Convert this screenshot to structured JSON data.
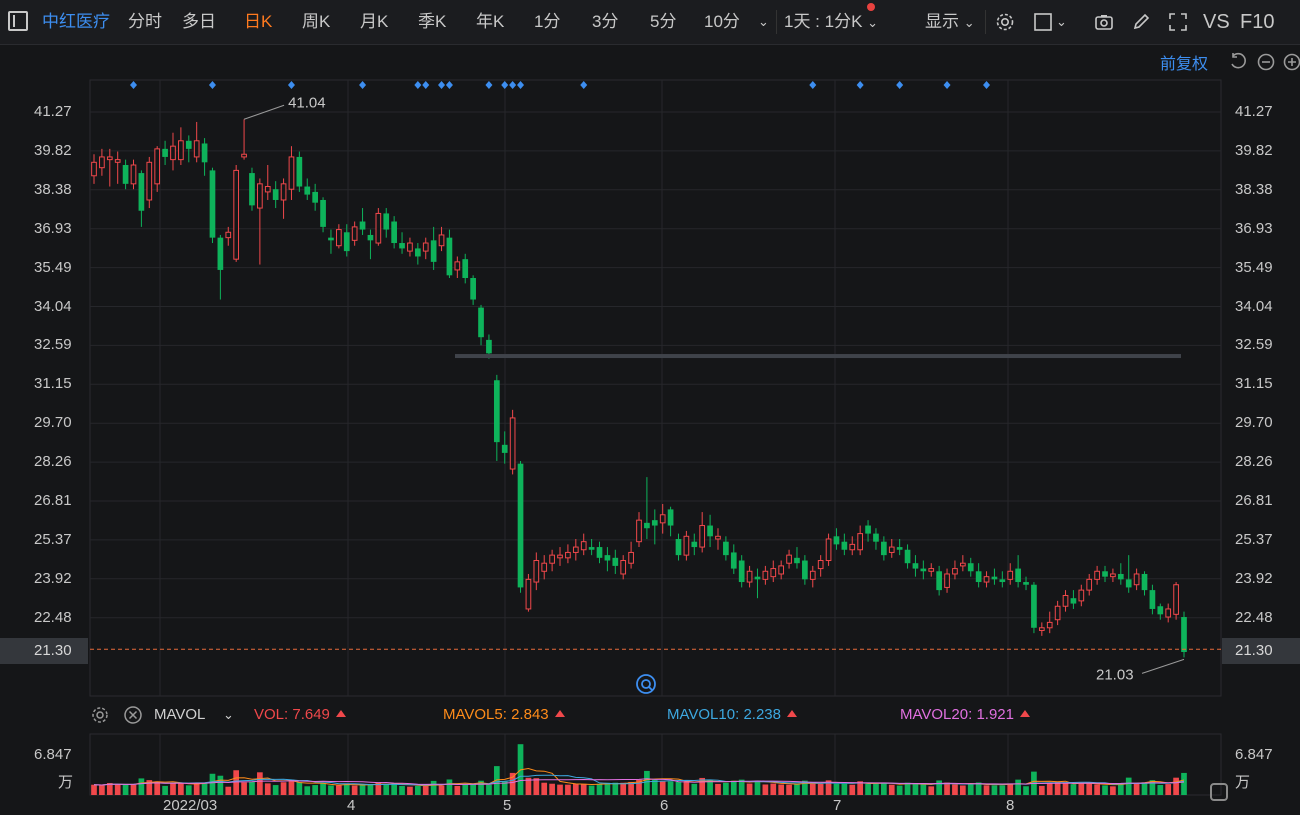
{
  "toolbar": {
    "stock_name": "中红医疗",
    "tabs": [
      "分时",
      "多日",
      "日K",
      "周K",
      "月K",
      "季K",
      "年K",
      "1分",
      "3分",
      "5分",
      "10分"
    ],
    "active_tab": "日K",
    "period_select": "1天 : 1分K",
    "display_label": "显示",
    "vs_label": "VS",
    "f10_label": "F10"
  },
  "adjust_label": "前复权",
  "chart_data": {
    "type": "candlestick",
    "y_ticks": [
      "41.27",
      "39.82",
      "38.38",
      "36.93",
      "35.49",
      "34.04",
      "32.59",
      "31.15",
      "29.70",
      "28.26",
      "26.81",
      "25.37",
      "23.92",
      "22.48"
    ],
    "ylim": [
      20.2,
      42.0
    ],
    "current_price": "21.30",
    "high_label": "41.04",
    "low_label": "21.03",
    "x_labels": [
      "2022/03",
      "4",
      "5",
      "6",
      "7",
      "8"
    ],
    "volume_unit_label": "6.847",
    "volume_unit": "万",
    "reference_line": 32.2,
    "candles": [
      {
        "o": 38.9,
        "c": 39.4,
        "h": 39.7,
        "l": 38.6
      },
      {
        "o": 39.2,
        "c": 39.6,
        "h": 39.9,
        "l": 38.9
      },
      {
        "o": 39.5,
        "c": 39.6,
        "h": 39.9,
        "l": 38.5
      },
      {
        "o": 39.4,
        "c": 39.5,
        "h": 39.8,
        "l": 38.6
      },
      {
        "o": 39.3,
        "c": 38.6,
        "h": 39.5,
        "l": 38.4
      },
      {
        "o": 38.6,
        "c": 39.3,
        "h": 39.5,
        "l": 38.4
      },
      {
        "o": 39.0,
        "c": 37.6,
        "h": 39.1,
        "l": 37.0
      },
      {
        "o": 38.0,
        "c": 39.4,
        "h": 39.6,
        "l": 37.7
      },
      {
        "o": 38.6,
        "c": 39.9,
        "h": 40.0,
        "l": 38.3
      },
      {
        "o": 39.9,
        "c": 39.6,
        "h": 40.2,
        "l": 39.3
      },
      {
        "o": 39.5,
        "c": 40.0,
        "h": 40.5,
        "l": 39.1
      },
      {
        "o": 39.5,
        "c": 40.2,
        "h": 40.7,
        "l": 39.3
      },
      {
        "o": 40.2,
        "c": 39.9,
        "h": 40.4,
        "l": 39.4
      },
      {
        "o": 39.6,
        "c": 40.2,
        "h": 40.9,
        "l": 39.4
      },
      {
        "o": 40.1,
        "c": 39.4,
        "h": 40.3,
        "l": 38.9
      },
      {
        "o": 39.1,
        "c": 36.6,
        "h": 39.2,
        "l": 36.4
      },
      {
        "o": 36.6,
        "c": 35.4,
        "h": 36.7,
        "l": 34.3
      },
      {
        "o": 36.6,
        "c": 36.8,
        "h": 37.0,
        "l": 36.3
      },
      {
        "o": 35.8,
        "c": 39.1,
        "h": 39.3,
        "l": 35.7
      },
      {
        "o": 39.6,
        "c": 39.7,
        "h": 41.0,
        "l": 39.5
      },
      {
        "o": 39.0,
        "c": 37.8,
        "h": 39.2,
        "l": 37.6
      },
      {
        "o": 37.7,
        "c": 38.6,
        "h": 38.8,
        "l": 35.6
      },
      {
        "o": 38.3,
        "c": 38.5,
        "h": 39.3,
        "l": 38.0
      },
      {
        "o": 38.4,
        "c": 38.0,
        "h": 38.7,
        "l": 37.7
      },
      {
        "o": 38.0,
        "c": 38.6,
        "h": 38.8,
        "l": 37.3
      },
      {
        "o": 38.4,
        "c": 39.6,
        "h": 40.0,
        "l": 38.0
      },
      {
        "o": 39.6,
        "c": 38.5,
        "h": 39.8,
        "l": 38.3
      },
      {
        "o": 38.5,
        "c": 38.2,
        "h": 38.8,
        "l": 38.0
      },
      {
        "o": 38.3,
        "c": 37.9,
        "h": 38.6,
        "l": 37.6
      },
      {
        "o": 38.0,
        "c": 37.0,
        "h": 38.1,
        "l": 36.8
      },
      {
        "o": 36.6,
        "c": 36.5,
        "h": 36.9,
        "l": 36.0
      },
      {
        "o": 36.3,
        "c": 36.9,
        "h": 37.1,
        "l": 36.2
      },
      {
        "o": 36.8,
        "c": 36.1,
        "h": 37.1,
        "l": 35.9
      },
      {
        "o": 36.5,
        "c": 37.0,
        "h": 37.2,
        "l": 36.3
      },
      {
        "o": 37.2,
        "c": 36.9,
        "h": 37.7,
        "l": 36.7
      },
      {
        "o": 36.7,
        "c": 36.5,
        "h": 36.9,
        "l": 35.8
      },
      {
        "o": 36.4,
        "c": 37.5,
        "h": 37.7,
        "l": 36.3
      },
      {
        "o": 37.5,
        "c": 36.9,
        "h": 37.7,
        "l": 36.6
      },
      {
        "o": 37.2,
        "c": 36.4,
        "h": 37.4,
        "l": 36.2
      },
      {
        "o": 36.4,
        "c": 36.2,
        "h": 36.8,
        "l": 36.0
      },
      {
        "o": 36.1,
        "c": 36.4,
        "h": 36.6,
        "l": 35.9
      },
      {
        "o": 36.2,
        "c": 35.9,
        "h": 36.4,
        "l": 35.6
      },
      {
        "o": 36.1,
        "c": 36.4,
        "h": 36.6,
        "l": 35.8
      },
      {
        "o": 36.5,
        "c": 35.7,
        "h": 37.0,
        "l": 35.4
      },
      {
        "o": 36.3,
        "c": 36.7,
        "h": 37.0,
        "l": 36.1
      },
      {
        "o": 36.6,
        "c": 35.2,
        "h": 36.9,
        "l": 35.1
      },
      {
        "o": 35.4,
        "c": 35.7,
        "h": 35.9,
        "l": 35.1
      },
      {
        "o": 35.8,
        "c": 35.1,
        "h": 36.0,
        "l": 34.9
      },
      {
        "o": 35.1,
        "c": 34.3,
        "h": 35.2,
        "l": 34.1
      },
      {
        "o": 34.0,
        "c": 32.9,
        "h": 34.1,
        "l": 32.6
      },
      {
        "o": 32.8,
        "c": 32.3,
        "h": 33.0,
        "l": 32.1
      },
      {
        "o": 31.3,
        "c": 29.0,
        "h": 31.5,
        "l": 28.3
      },
      {
        "o": 28.9,
        "c": 28.6,
        "h": 29.4,
        "l": 28.2
      },
      {
        "o": 28.0,
        "c": 29.9,
        "h": 30.2,
        "l": 27.8
      },
      {
        "o": 28.2,
        "c": 23.6,
        "h": 28.3,
        "l": 23.4
      },
      {
        "o": 22.8,
        "c": 23.9,
        "h": 24.1,
        "l": 22.7
      },
      {
        "o": 23.8,
        "c": 24.6,
        "h": 24.9,
        "l": 23.5
      },
      {
        "o": 24.2,
        "c": 24.5,
        "h": 24.8,
        "l": 23.9
      },
      {
        "o": 24.5,
        "c": 24.8,
        "h": 25.0,
        "l": 24.2
      },
      {
        "o": 24.7,
        "c": 24.8,
        "h": 25.1,
        "l": 24.4
      },
      {
        "o": 24.7,
        "c": 24.9,
        "h": 25.2,
        "l": 24.5
      },
      {
        "o": 24.9,
        "c": 25.1,
        "h": 25.4,
        "l": 24.6
      },
      {
        "o": 25.0,
        "c": 25.3,
        "h": 25.6,
        "l": 24.8
      },
      {
        "o": 25.1,
        "c": 25.0,
        "h": 25.4,
        "l": 24.8
      },
      {
        "o": 25.1,
        "c": 24.7,
        "h": 25.3,
        "l": 24.5
      },
      {
        "o": 24.8,
        "c": 24.6,
        "h": 25.1,
        "l": 24.2
      },
      {
        "o": 24.7,
        "c": 24.4,
        "h": 25.0,
        "l": 24.1
      },
      {
        "o": 24.1,
        "c": 24.6,
        "h": 24.8,
        "l": 23.9
      },
      {
        "o": 24.5,
        "c": 24.9,
        "h": 25.3,
        "l": 24.3
      },
      {
        "o": 25.3,
        "c": 26.1,
        "h": 26.4,
        "l": 25.1
      },
      {
        "o": 26.0,
        "c": 25.8,
        "h": 27.7,
        "l": 25.4
      },
      {
        "o": 26.1,
        "c": 25.9,
        "h": 26.5,
        "l": 25.2
      },
      {
        "o": 26.0,
        "c": 26.3,
        "h": 26.7,
        "l": 25.6
      },
      {
        "o": 26.5,
        "c": 25.9,
        "h": 26.6,
        "l": 25.5
      },
      {
        "o": 25.4,
        "c": 24.8,
        "h": 25.6,
        "l": 24.6
      },
      {
        "o": 24.8,
        "c": 25.5,
        "h": 25.7,
        "l": 24.6
      },
      {
        "o": 25.3,
        "c": 25.1,
        "h": 25.6,
        "l": 24.8
      },
      {
        "o": 25.1,
        "c": 25.9,
        "h": 26.4,
        "l": 24.9
      },
      {
        "o": 25.9,
        "c": 25.5,
        "h": 26.3,
        "l": 25.1
      },
      {
        "o": 25.4,
        "c": 25.5,
        "h": 25.8,
        "l": 25.0
      },
      {
        "o": 25.3,
        "c": 24.8,
        "h": 25.5,
        "l": 24.6
      },
      {
        "o": 24.9,
        "c": 24.3,
        "h": 25.2,
        "l": 24.1
      },
      {
        "o": 24.6,
        "c": 23.8,
        "h": 24.8,
        "l": 23.6
      },
      {
        "o": 23.8,
        "c": 24.2,
        "h": 24.4,
        "l": 23.6
      },
      {
        "o": 24.0,
        "c": 23.9,
        "h": 24.3,
        "l": 23.2
      },
      {
        "o": 23.9,
        "c": 24.2,
        "h": 24.4,
        "l": 23.7
      },
      {
        "o": 24.0,
        "c": 24.3,
        "h": 24.6,
        "l": 23.8
      },
      {
        "o": 24.1,
        "c": 24.4,
        "h": 24.6,
        "l": 23.9
      },
      {
        "o": 24.5,
        "c": 24.8,
        "h": 25.0,
        "l": 24.3
      },
      {
        "o": 24.7,
        "c": 24.5,
        "h": 25.1,
        "l": 24.3
      },
      {
        "o": 24.6,
        "c": 23.9,
        "h": 24.8,
        "l": 23.7
      },
      {
        "o": 23.9,
        "c": 24.2,
        "h": 24.4,
        "l": 23.6
      },
      {
        "o": 24.3,
        "c": 24.6,
        "h": 24.8,
        "l": 24.0
      },
      {
        "o": 24.6,
        "c": 25.4,
        "h": 25.6,
        "l": 24.4
      },
      {
        "o": 25.5,
        "c": 25.2,
        "h": 25.8,
        "l": 25.0
      },
      {
        "o": 25.3,
        "c": 25.0,
        "h": 25.6,
        "l": 24.8
      },
      {
        "o": 25.0,
        "c": 25.2,
        "h": 25.5,
        "l": 24.8
      },
      {
        "o": 25.0,
        "c": 25.6,
        "h": 25.9,
        "l": 24.8
      },
      {
        "o": 25.9,
        "c": 25.6,
        "h": 26.1,
        "l": 25.3
      },
      {
        "o": 25.6,
        "c": 25.3,
        "h": 25.8,
        "l": 25.0
      },
      {
        "o": 25.3,
        "c": 24.8,
        "h": 25.5,
        "l": 24.6
      },
      {
        "o": 24.9,
        "c": 25.1,
        "h": 25.4,
        "l": 24.7
      },
      {
        "o": 25.1,
        "c": 25.0,
        "h": 25.4,
        "l": 24.8
      },
      {
        "o": 25.0,
        "c": 24.5,
        "h": 25.2,
        "l": 24.3
      },
      {
        "o": 24.5,
        "c": 24.3,
        "h": 24.8,
        "l": 24.0
      },
      {
        "o": 24.3,
        "c": 24.2,
        "h": 24.6,
        "l": 23.9
      },
      {
        "o": 24.2,
        "c": 24.3,
        "h": 24.5,
        "l": 24.0
      },
      {
        "o": 24.2,
        "c": 23.5,
        "h": 24.4,
        "l": 23.3
      },
      {
        "o": 23.6,
        "c": 24.1,
        "h": 24.3,
        "l": 23.4
      },
      {
        "o": 24.1,
        "c": 24.3,
        "h": 24.6,
        "l": 23.9
      },
      {
        "o": 24.4,
        "c": 24.5,
        "h": 24.8,
        "l": 24.2
      },
      {
        "o": 24.5,
        "c": 24.2,
        "h": 24.7,
        "l": 24.0
      },
      {
        "o": 24.2,
        "c": 23.8,
        "h": 24.5,
        "l": 23.6
      },
      {
        "o": 23.8,
        "c": 24.0,
        "h": 24.2,
        "l": 23.6
      },
      {
        "o": 24.0,
        "c": 23.9,
        "h": 24.3,
        "l": 23.7
      },
      {
        "o": 23.9,
        "c": 23.8,
        "h": 24.2,
        "l": 23.6
      },
      {
        "o": 23.9,
        "c": 24.2,
        "h": 24.5,
        "l": 23.7
      },
      {
        "o": 24.3,
        "c": 23.8,
        "h": 24.8,
        "l": 23.6
      },
      {
        "o": 23.8,
        "c": 23.7,
        "h": 24.0,
        "l": 23.5
      },
      {
        "o": 23.7,
        "c": 22.1,
        "h": 23.8,
        "l": 21.9
      },
      {
        "o": 22.0,
        "c": 22.1,
        "h": 22.3,
        "l": 21.8
      },
      {
        "o": 22.1,
        "c": 22.3,
        "h": 22.7,
        "l": 21.9
      },
      {
        "o": 22.4,
        "c": 22.9,
        "h": 23.1,
        "l": 22.2
      },
      {
        "o": 22.9,
        "c": 23.3,
        "h": 23.5,
        "l": 22.7
      },
      {
        "o": 23.2,
        "c": 23.0,
        "h": 23.5,
        "l": 22.8
      },
      {
        "o": 23.1,
        "c": 23.5,
        "h": 23.7,
        "l": 22.9
      },
      {
        "o": 23.5,
        "c": 23.9,
        "h": 24.1,
        "l": 23.3
      },
      {
        "o": 23.9,
        "c": 24.2,
        "h": 24.4,
        "l": 23.7
      },
      {
        "o": 24.2,
        "c": 24.0,
        "h": 24.4,
        "l": 23.8
      },
      {
        "o": 24.0,
        "c": 24.1,
        "h": 24.3,
        "l": 23.8
      },
      {
        "o": 24.1,
        "c": 23.9,
        "h": 24.5,
        "l": 23.7
      },
      {
        "o": 23.9,
        "c": 23.6,
        "h": 24.8,
        "l": 23.4
      },
      {
        "o": 23.7,
        "c": 24.1,
        "h": 24.3,
        "l": 23.5
      },
      {
        "o": 24.1,
        "c": 23.5,
        "h": 24.2,
        "l": 23.3
      },
      {
        "o": 23.5,
        "c": 22.8,
        "h": 23.7,
        "l": 22.6
      },
      {
        "o": 22.9,
        "c": 22.6,
        "h": 23.0,
        "l": 22.4
      },
      {
        "o": 22.5,
        "c": 22.8,
        "h": 23.0,
        "l": 22.3
      },
      {
        "o": 22.6,
        "c": 23.7,
        "h": 23.8,
        "l": 22.4
      },
      {
        "o": 22.5,
        "c": 21.2,
        "h": 22.7,
        "l": 21.0
      }
    ],
    "mavol": {
      "label": "MAVOL",
      "vol_label": "VOL:",
      "vol": "7.649",
      "mavol5_label": "MAVOL5:",
      "mavol5": "2.843",
      "mavol10_label": "MAVOL10:",
      "mavol10": "2.238",
      "mavol20_label": "MAVOL20:",
      "mavol20": "1.921"
    },
    "event_marker_indices": [
      5,
      15,
      25,
      34,
      41,
      42,
      44,
      45,
      50,
      52,
      53,
      54,
      62,
      91,
      97,
      102,
      108,
      113
    ],
    "colors": {
      "up": "#f0484b",
      "down": "#0eb35b",
      "ma5": "#ff8c1a",
      "ma10": "#3da8e0",
      "ma20": "#e070e0",
      "price_line": "#e86a3a"
    }
  }
}
